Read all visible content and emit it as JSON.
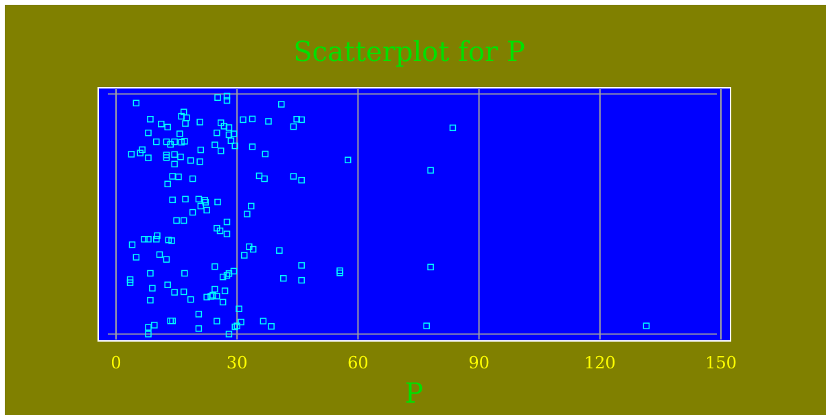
{
  "chart_data": {
    "type": "scatter",
    "title": "Scatterplot for P",
    "xlabel": "P",
    "ylabel": "",
    "xlim": [
      0,
      150
    ],
    "xticks": [
      "0",
      "30",
      "60",
      "90",
      "120",
      "150"
    ],
    "xtick_values": [
      0,
      30,
      60,
      90,
      120,
      150
    ],
    "grid": true,
    "colors": {
      "background": "#808000",
      "plot_area": "#0000ff",
      "marker": "#00ffff",
      "title": "#00e000",
      "tick_labels": "#ffff00",
      "gridline": "#a0a0a0"
    },
    "points": [
      [
        27.5,
        0.991
      ],
      [
        25.2,
        0.985
      ],
      [
        27.5,
        0.973
      ],
      [
        5.0,
        0.962
      ],
      [
        41.0,
        0.957
      ],
      [
        16.8,
        0.925
      ],
      [
        16.2,
        0.907
      ],
      [
        17.5,
        0.901
      ],
      [
        8.5,
        0.895
      ],
      [
        31.5,
        0.893
      ],
      [
        33.8,
        0.896
      ],
      [
        44.8,
        0.895
      ],
      [
        46.0,
        0.893
      ],
      [
        20.8,
        0.883
      ],
      [
        37.8,
        0.886
      ],
      [
        17.2,
        0.877
      ],
      [
        26.0,
        0.88
      ],
      [
        11.2,
        0.875
      ],
      [
        12.8,
        0.862
      ],
      [
        26.8,
        0.866
      ],
      [
        28.0,
        0.86
      ],
      [
        44.0,
        0.864
      ],
      [
        83.5,
        0.859
      ],
      [
        8.0,
        0.838
      ],
      [
        15.8,
        0.834
      ],
      [
        25.0,
        0.838
      ],
      [
        28.0,
        0.83
      ],
      [
        29.2,
        0.834
      ],
      [
        10.0,
        0.801
      ],
      [
        12.5,
        0.801
      ],
      [
        14.5,
        0.801
      ],
      [
        16.2,
        0.799
      ],
      [
        17.0,
        0.803
      ],
      [
        13.5,
        0.79
      ],
      [
        28.5,
        0.805
      ],
      [
        24.5,
        0.788
      ],
      [
        29.5,
        0.784
      ],
      [
        33.8,
        0.78
      ],
      [
        21.0,
        0.767
      ],
      [
        26.0,
        0.763
      ],
      [
        6.5,
        0.768
      ],
      [
        6.0,
        0.754
      ],
      [
        3.8,
        0.749
      ],
      [
        8.0,
        0.734
      ],
      [
        12.5,
        0.746
      ],
      [
        14.5,
        0.748
      ],
      [
        16.0,
        0.738
      ],
      [
        12.5,
        0.735
      ],
      [
        18.5,
        0.723
      ],
      [
        20.8,
        0.718
      ],
      [
        14.5,
        0.708
      ],
      [
        37.0,
        0.75
      ],
      [
        57.5,
        0.725
      ],
      [
        78.0,
        0.682
      ],
      [
        14.0,
        0.657
      ],
      [
        15.5,
        0.655
      ],
      [
        19.0,
        0.647
      ],
      [
        35.5,
        0.659
      ],
      [
        36.8,
        0.647
      ],
      [
        44.0,
        0.657
      ],
      [
        46.0,
        0.641
      ],
      [
        12.8,
        0.625
      ],
      [
        14.0,
        0.559
      ],
      [
        17.2,
        0.562
      ],
      [
        20.5,
        0.562
      ],
      [
        22.0,
        0.558
      ],
      [
        22.2,
        0.549
      ],
      [
        25.2,
        0.55
      ],
      [
        21.0,
        0.533
      ],
      [
        33.5,
        0.533
      ],
      [
        22.5,
        0.516
      ],
      [
        19.0,
        0.507
      ],
      [
        32.5,
        0.5
      ],
      [
        27.5,
        0.467
      ],
      [
        15.0,
        0.473
      ],
      [
        16.8,
        0.473
      ],
      [
        25.0,
        0.441
      ],
      [
        27.5,
        0.417
      ],
      [
        25.8,
        0.43
      ],
      [
        7.0,
        0.395
      ],
      [
        8.0,
        0.395
      ],
      [
        10.0,
        0.395
      ],
      [
        10.2,
        0.41
      ],
      [
        13.0,
        0.392
      ],
      [
        13.8,
        0.389
      ],
      [
        4.0,
        0.372
      ],
      [
        33.0,
        0.364
      ],
      [
        34.0,
        0.353
      ],
      [
        40.5,
        0.348
      ],
      [
        10.8,
        0.331
      ],
      [
        5.0,
        0.32
      ],
      [
        31.8,
        0.328
      ],
      [
        12.5,
        0.311
      ],
      [
        46.0,
        0.286
      ],
      [
        24.5,
        0.281
      ],
      [
        29.2,
        0.262
      ],
      [
        28.0,
        0.252
      ],
      [
        27.5,
        0.244
      ],
      [
        26.5,
        0.238
      ],
      [
        78.0,
        0.279
      ],
      [
        55.5,
        0.264
      ],
      [
        55.5,
        0.255
      ],
      [
        8.5,
        0.253
      ],
      [
        17.0,
        0.253
      ],
      [
        3.5,
        0.227
      ],
      [
        3.5,
        0.214
      ],
      [
        9.0,
        0.191
      ],
      [
        12.8,
        0.205
      ],
      [
        14.5,
        0.174
      ],
      [
        16.8,
        0.176
      ],
      [
        41.5,
        0.232
      ],
      [
        46.0,
        0.224
      ],
      [
        27.0,
        0.18
      ],
      [
        23.5,
        0.157
      ],
      [
        24.0,
        0.162
      ],
      [
        25.0,
        0.158
      ],
      [
        22.5,
        0.154
      ],
      [
        24.5,
        0.187
      ],
      [
        8.5,
        0.141
      ],
      [
        18.5,
        0.144
      ],
      [
        26.5,
        0.133
      ],
      [
        30.5,
        0.105
      ],
      [
        20.5,
        0.083
      ],
      [
        13.5,
        0.055
      ],
      [
        14.0,
        0.055
      ],
      [
        9.5,
        0.037
      ],
      [
        8.0,
        0.028
      ],
      [
        25.0,
        0.054
      ],
      [
        31.0,
        0.05
      ],
      [
        30.0,
        0.034
      ],
      [
        36.5,
        0.054
      ],
      [
        38.5,
        0.032
      ],
      [
        20.5,
        0.023
      ],
      [
        8.0,
        0.0
      ],
      [
        28.0,
        0.0
      ],
      [
        29.5,
        0.03
      ],
      [
        77.0,
        0.034
      ],
      [
        131.5,
        0.034
      ]
    ]
  }
}
